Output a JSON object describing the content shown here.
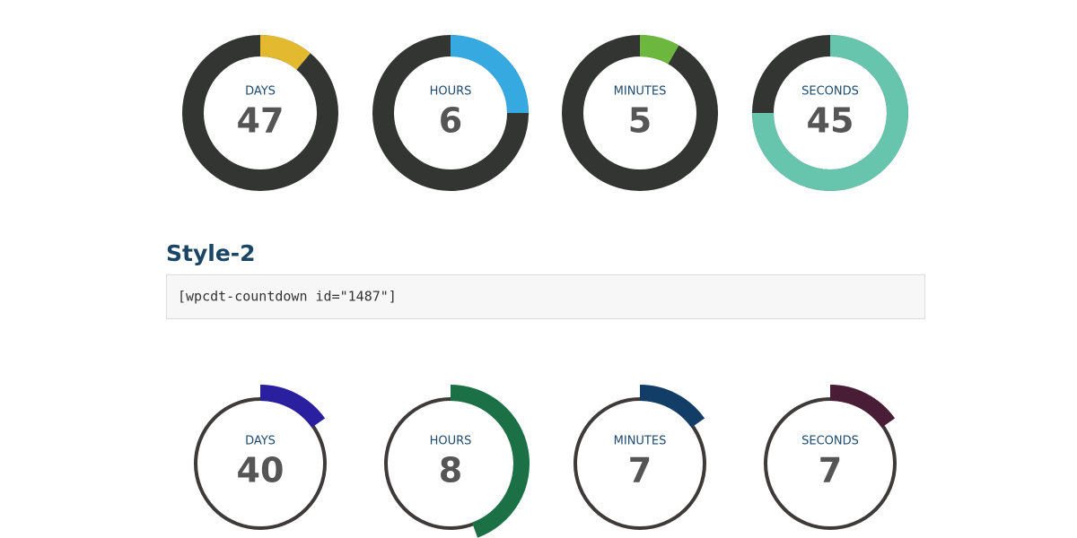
{
  "countdown_1": {
    "units": [
      {
        "label": "DAYS",
        "value": "47"
      },
      {
        "label": "HOURS",
        "value": "6"
      },
      {
        "label": "MINUTES",
        "value": "5"
      },
      {
        "label": "SECONDS",
        "value": "45"
      }
    ]
  },
  "section": {
    "heading": "Style-2",
    "shortcode": "[wpcdt-countdown id=\"1487\"]"
  },
  "countdown_2": {
    "units": [
      {
        "label": "DAYS",
        "value": "40"
      },
      {
        "label": "HOURS",
        "value": "8"
      },
      {
        "label": "MINUTES",
        "value": "7"
      },
      {
        "label": "SECONDS",
        "value": "7"
      }
    ]
  }
}
